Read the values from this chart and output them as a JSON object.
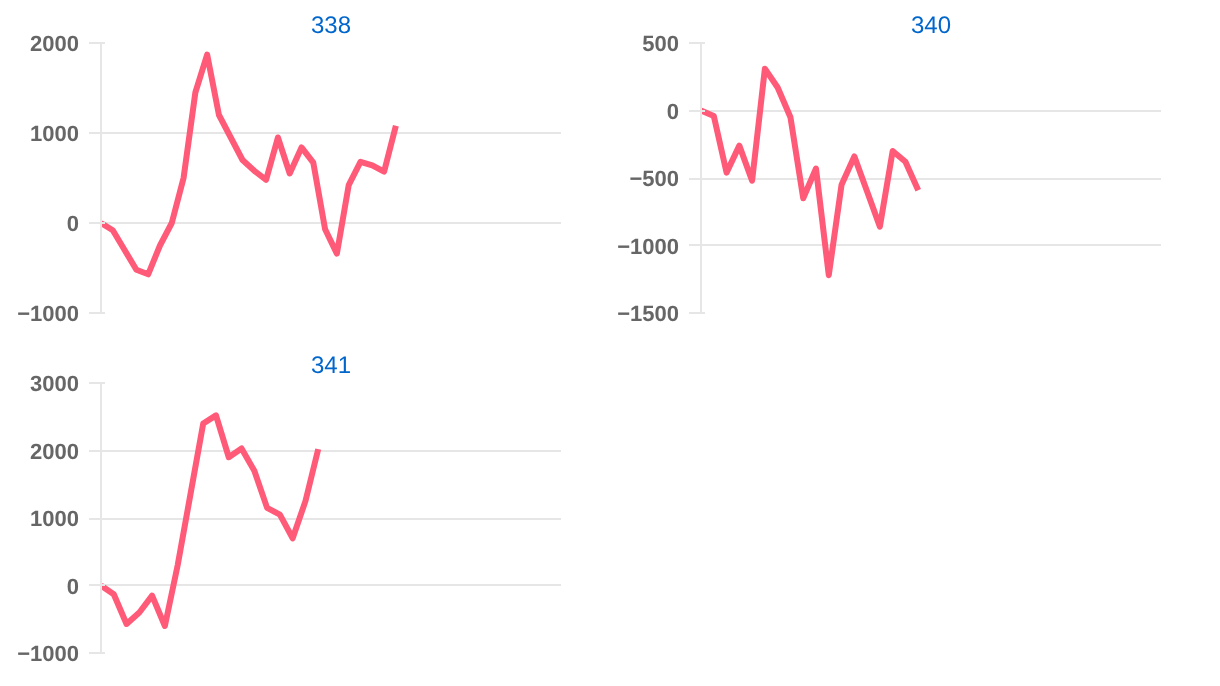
{
  "chart_data": [
    {
      "type": "line",
      "title": "338",
      "categories": [
        null,
        null,
        null,
        null,
        null,
        null,
        null,
        null,
        null,
        null,
        null,
        null,
        null,
        null,
        null,
        null,
        null,
        null,
        null,
        null,
        null,
        null,
        null,
        null,
        null,
        null,
        null,
        null,
        null,
        null,
        null,
        null,
        null,
        null,
        null,
        null,
        null,
        null,
        null,
        null
      ],
      "series": [
        {
          "color": "#ff5a78",
          "values": [
            0,
            -80,
            -300,
            -520,
            -570,
            -250,
            0,
            500,
            1450,
            1870,
            1200,
            950,
            700,
            580,
            480,
            950,
            550,
            840,
            670,
            -70,
            -340,
            420,
            680,
            640,
            570,
            1080,
            null,
            null,
            null,
            null,
            null,
            null,
            null,
            null,
            null,
            null,
            null,
            null,
            null,
            null
          ]
        }
      ],
      "ylim": [
        -1000,
        2000
      ],
      "yticks": [
        -1000,
        0,
        1000,
        2000
      ],
      "grid": "y",
      "tick_labels": "y"
    },
    {
      "type": "line",
      "title": "340",
      "categories": [
        null,
        null,
        null,
        null,
        null,
        null,
        null,
        null,
        null,
        null,
        null,
        null,
        null,
        null,
        null,
        null,
        null,
        null,
        null,
        null,
        null,
        null,
        null,
        null,
        null,
        null,
        null,
        null,
        null,
        null,
        null,
        null,
        null,
        null,
        null,
        null,
        null
      ],
      "series": [
        {
          "color": "#ff5a78",
          "values": [
            0,
            -40,
            -460,
            -260,
            -520,
            310,
            170,
            -50,
            -650,
            -430,
            -1220,
            -550,
            -340,
            -600,
            -860,
            -300,
            -380,
            -590,
            null,
            null,
            null,
            null,
            null,
            null,
            null,
            null,
            null,
            null,
            null,
            null,
            null,
            null,
            null,
            null,
            null,
            null,
            null
          ]
        }
      ],
      "ylim": [
        -1500,
        500
      ],
      "yticks": [
        -1500,
        -1000,
        -500,
        0,
        500
      ],
      "grid": "y",
      "tick_labels": "y"
    },
    {
      "type": "line",
      "title": "341",
      "categories": [
        null,
        null,
        null,
        null,
        null,
        null,
        null,
        null,
        null,
        null,
        null,
        null,
        null,
        null,
        null,
        null,
        null,
        null,
        null,
        null,
        null,
        null,
        null,
        null,
        null,
        null,
        null,
        null,
        null,
        null,
        null,
        null,
        null,
        null,
        null,
        null,
        null
      ],
      "series": [
        {
          "color": "#ff5a78",
          "values": [
            0,
            -130,
            -570,
            -400,
            -150,
            -600,
            300,
            1350,
            2400,
            2520,
            1900,
            2030,
            1700,
            1150,
            1050,
            700,
            1250,
            2020,
            null,
            null,
            null,
            null,
            null,
            null,
            null,
            null,
            null,
            null,
            null,
            null,
            null,
            null,
            null,
            null,
            null,
            null,
            null
          ]
        }
      ],
      "ylim": [
        -1000,
        3000
      ],
      "yticks": [
        -1000,
        0,
        1000,
        2000,
        3000
      ],
      "grid": "y",
      "tick_labels": "y"
    }
  ]
}
